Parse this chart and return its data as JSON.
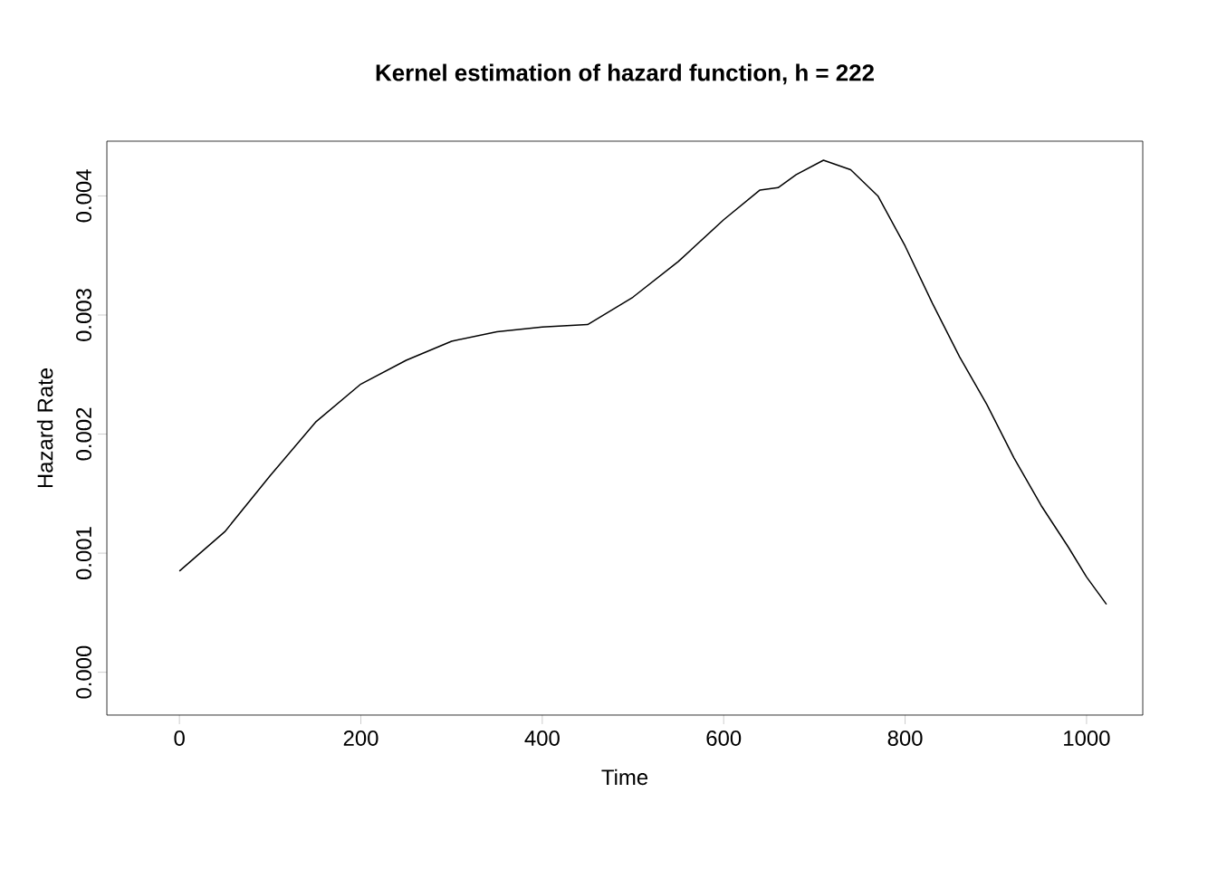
{
  "chart_data": {
    "type": "line",
    "title": "Kernel estimation of hazard function, h = 222",
    "xlabel": "Time",
    "ylabel": "Hazard Rate",
    "x": [
      0,
      50,
      100,
      150,
      200,
      250,
      300,
      350,
      400,
      450,
      500,
      550,
      600,
      640,
      660,
      680,
      710,
      740,
      770,
      800,
      830,
      860,
      890,
      920,
      950,
      980,
      1000,
      1022
    ],
    "series": [
      {
        "color": "#000000",
        "values": [
          0.00085,
          0.00118,
          0.00165,
          0.0021,
          0.00242,
          0.00262,
          0.00278,
          0.00286,
          0.0029,
          0.00292,
          0.00315,
          0.00345,
          0.0038,
          0.00405,
          0.00407,
          0.00418,
          0.0043,
          0.00422,
          0.004,
          0.00358,
          0.0031,
          0.00265,
          0.00225,
          0.0018,
          0.0014,
          0.00105,
          0.0008,
          0.00057
        ]
      }
    ],
    "xlim": [
      -80,
      1062
    ],
    "ylim": [
      -0.00036,
      0.00446
    ],
    "xticks": [
      0,
      200,
      400,
      600,
      800,
      1000
    ],
    "yticks": [
      {
        "value": 0,
        "label": "0.000"
      },
      {
        "value": 0.001,
        "label": "0.001"
      },
      {
        "value": 0.002,
        "label": "0.002"
      },
      {
        "value": 0.003,
        "label": "0.003"
      },
      {
        "value": 0.004,
        "label": "0.004"
      }
    ],
    "grid": false,
    "marker": "none",
    "line_style": "solid"
  }
}
